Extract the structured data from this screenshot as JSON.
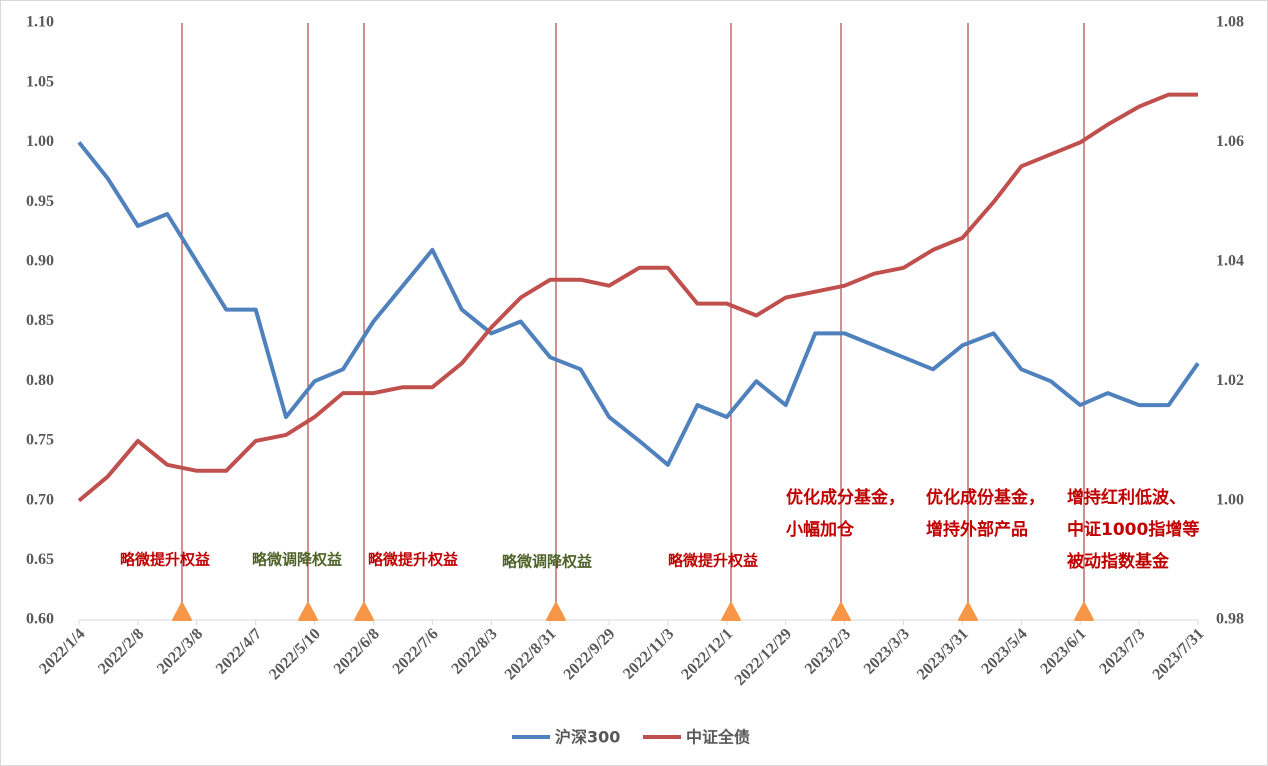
{
  "chart_data": {
    "type": "line",
    "x": [
      "2022/1/4",
      "2022/1/21",
      "2022/2/8",
      "2022/2/22",
      "2022/3/8",
      "2022/3/23",
      "2022/4/7",
      "2022/4/24",
      "2022/5/10",
      "2022/5/24",
      "2022/6/8",
      "2022/6/22",
      "2022/7/6",
      "2022/7/20",
      "2022/8/3",
      "2022/8/17",
      "2022/8/31",
      "2022/9/15",
      "2022/9/29",
      "2022/10/17",
      "2022/11/3",
      "2022/11/17",
      "2022/12/1",
      "2022/12/15",
      "2022/12/29",
      "2023/1/16",
      "2023/2/3",
      "2023/2/17",
      "2023/3/3",
      "2023/3/17",
      "2023/3/31",
      "2023/4/18",
      "2023/5/4",
      "2023/5/18",
      "2023/6/1",
      "2023/6/16",
      "2023/7/3",
      "2023/7/17",
      "2023/7/31"
    ],
    "series": [
      {
        "name": "沪深300",
        "color": "#4f81bd",
        "axis": "y",
        "values": [
          1.0,
          0.97,
          0.93,
          0.94,
          0.9,
          0.86,
          0.86,
          0.77,
          0.8,
          0.81,
          0.85,
          0.88,
          0.91,
          0.86,
          0.84,
          0.85,
          0.82,
          0.81,
          0.77,
          0.75,
          0.73,
          0.78,
          0.77,
          0.8,
          0.78,
          0.84,
          0.84,
          0.83,
          0.82,
          0.81,
          0.83,
          0.84,
          0.81,
          0.8,
          0.78,
          0.79,
          0.78,
          0.78,
          0.815
        ]
      },
      {
        "name": "中证全债",
        "color": "#c0504d",
        "axis": "y2",
        "values": [
          1.0,
          1.004,
          1.01,
          1.006,
          1.005,
          1.005,
          1.01,
          1.011,
          1.014,
          1.018,
          1.018,
          1.019,
          1.019,
          1.023,
          1.029,
          1.034,
          1.037,
          1.037,
          1.036,
          1.039,
          1.039,
          1.033,
          1.033,
          1.031,
          1.034,
          1.035,
          1.036,
          1.038,
          1.039,
          1.042,
          1.044,
          1.05,
          1.056,
          1.058,
          1.06,
          1.063,
          1.066,
          1.068,
          1.068
        ]
      }
    ],
    "xticks": [
      "2022/1/4",
      "2022/2/8",
      "2022/3/8",
      "2022/4/7",
      "2022/5/10",
      "2022/6/8",
      "2022/7/6",
      "2022/8/3",
      "2022/8/31",
      "2022/9/29",
      "2022/11/3",
      "2022/12/1",
      "2022/12/29",
      "2023/2/3",
      "2023/3/3",
      "2023/3/31",
      "2023/5/4",
      "2023/6/1",
      "2023/7/3",
      "2023/7/31"
    ],
    "ylim": [
      0.6,
      1.1
    ],
    "yticks": [
      {
        "value": 0.6,
        "label": "0.60"
      },
      0.65,
      {
        "value": 0.7,
        "label": "0.70"
      },
      0.75,
      {
        "value": 0.8,
        "label": "0.80"
      },
      0.85,
      {
        "value": 0.9,
        "label": "0.90"
      },
      0.95,
      {
        "value": 1.0,
        "label": "1.00"
      },
      1.05,
      {
        "value": 1.1,
        "label": "1.10"
      }
    ],
    "y2lim": [
      0.98,
      1.08
    ],
    "y2ticks": [
      0.98,
      {
        "value": 1.0,
        "label": "1.00"
      },
      1.02,
      1.04,
      1.06,
      1.08
    ],
    "grid": false,
    "legend": "bottom",
    "annotations": [
      {
        "lines": [
          "略微提升权益"
        ],
        "color": "#c00000"
      },
      {
        "lines": [
          "略微调降权益"
        ],
        "color": "#4f6228"
      },
      {
        "lines": [
          "略微提升权益"
        ],
        "color": "#c00000"
      },
      {
        "lines": [
          "略微调降权益"
        ],
        "color": "#4f6228"
      },
      {
        "lines": [
          "略微提升权益"
        ],
        "color": "#c00000"
      },
      {
        "lines": [
          "优化成分基金，",
          "小幅加仓"
        ],
        "color": "#c00000"
      },
      {
        "lines": [
          "优化成份基金，",
          "增持外部产品"
        ],
        "color": "#c00000"
      },
      {
        "lines": [
          "增持红利低波、",
          "中证1000指增等",
          "被动指数基金"
        ],
        "color": "#c00000"
      }
    ]
  }
}
